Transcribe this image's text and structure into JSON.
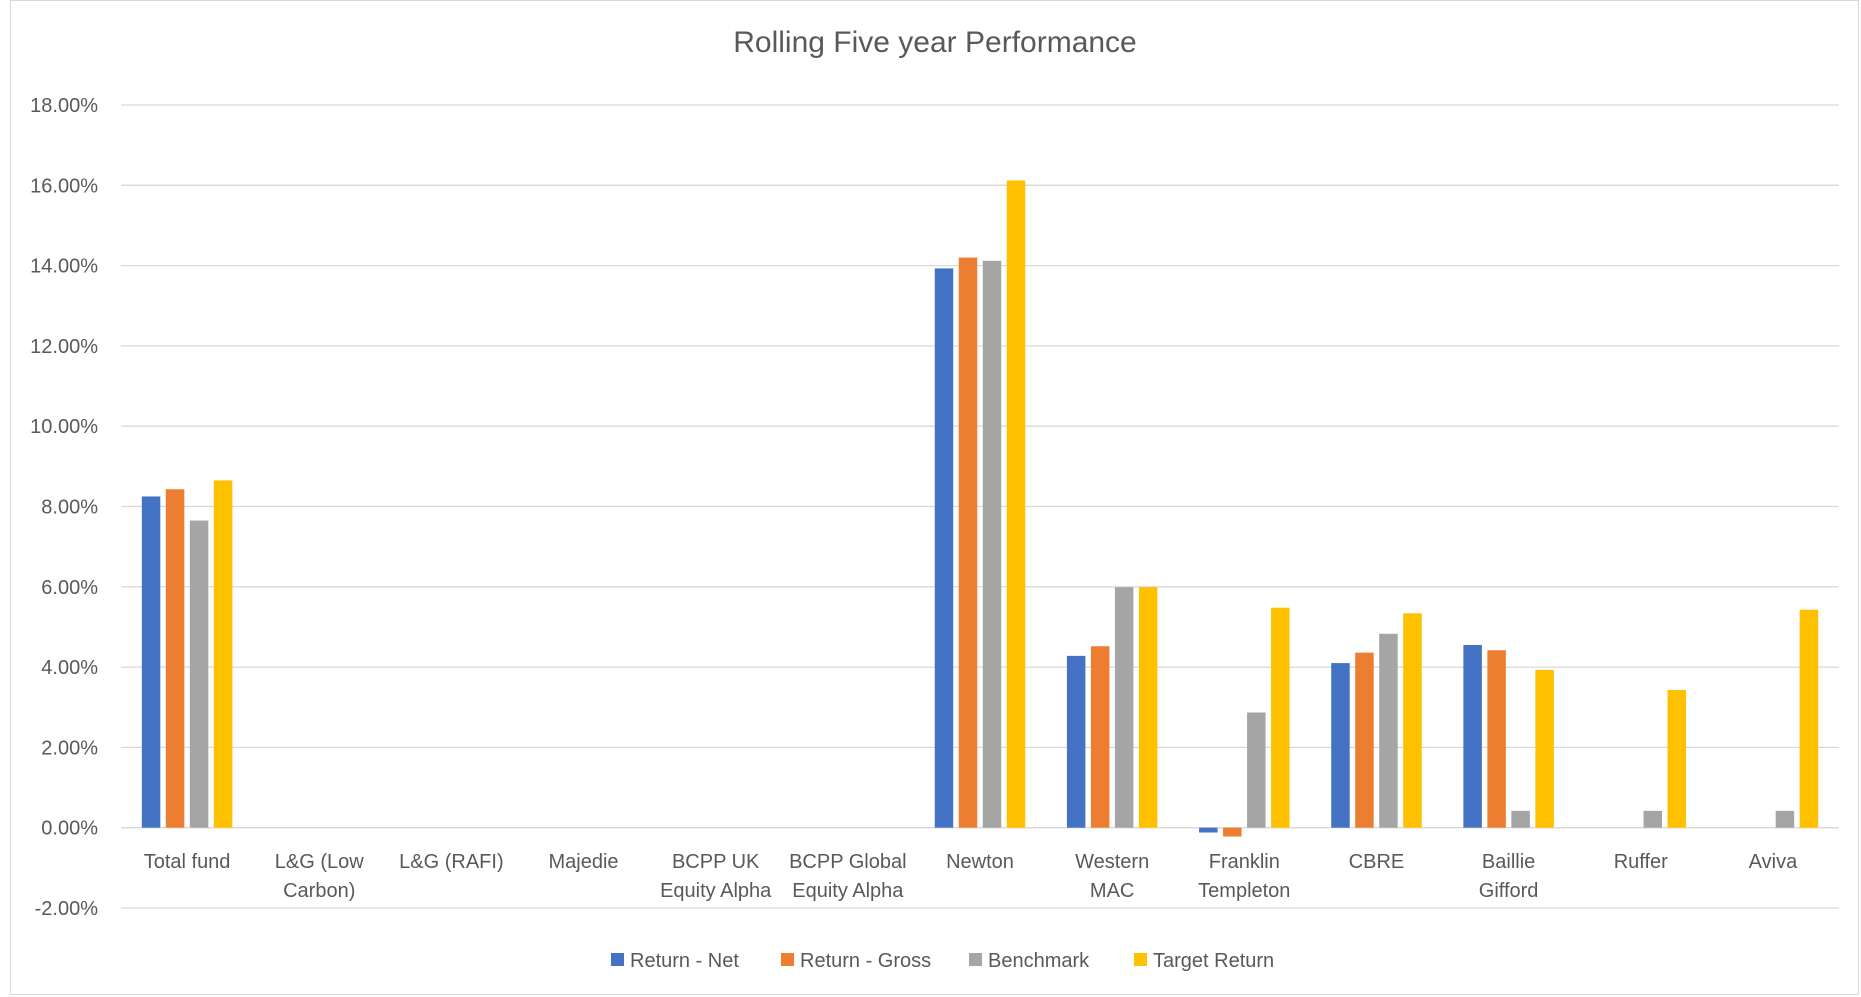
{
  "chart_data": {
    "type": "bar",
    "title": "Rolling Five year Performance",
    "categories": [
      [
        "Total fund"
      ],
      [
        "L&G (Low",
        "Carbon)"
      ],
      [
        "L&G (RAFI)"
      ],
      [
        "Majedie"
      ],
      [
        "BCPP UK",
        "Equity Alpha"
      ],
      [
        "BCPP Global",
        "Equity Alpha"
      ],
      [
        "Newton"
      ],
      [
        "Western",
        "MAC"
      ],
      [
        "Franklin",
        "Templeton"
      ],
      [
        "CBRE"
      ],
      [
        "Baillie",
        "Gifford"
      ],
      [
        "Ruffer"
      ],
      [
        "Aviva"
      ]
    ],
    "series": [
      {
        "name": "Return - Net",
        "color": "#4472c4",
        "values": [
          8.25,
          null,
          null,
          null,
          null,
          null,
          13.93,
          4.28,
          -0.12,
          4.1,
          4.55,
          null,
          null
        ]
      },
      {
        "name": "Return - Gross",
        "color": "#ed7d31",
        "values": [
          8.43,
          null,
          null,
          null,
          null,
          null,
          14.2,
          4.52,
          -0.22,
          4.36,
          4.42,
          null,
          null
        ]
      },
      {
        "name": "Benchmark",
        "color": "#a5a5a5",
        "values": [
          7.65,
          null,
          null,
          null,
          null,
          null,
          14.12,
          5.99,
          2.87,
          4.83,
          0.42,
          0.42,
          0.42
        ]
      },
      {
        "name": "Target Return",
        "color": "#ffc000",
        "values": [
          8.65,
          null,
          null,
          null,
          null,
          null,
          16.12,
          5.99,
          5.48,
          5.34,
          3.93,
          3.43,
          5.43
        ]
      }
    ],
    "ylim": [
      -2,
      18
    ],
    "ytick_step": 2,
    "ytick_labels": [
      "-2.00%",
      "0.00%",
      "2.00%",
      "4.00%",
      "6.00%",
      "8.00%",
      "10.00%",
      "12.00%",
      "14.00%",
      "16.00%",
      "18.00%"
    ],
    "grid": true,
    "legend_position": "bottom",
    "gridline_color": "#d9d9d9"
  }
}
